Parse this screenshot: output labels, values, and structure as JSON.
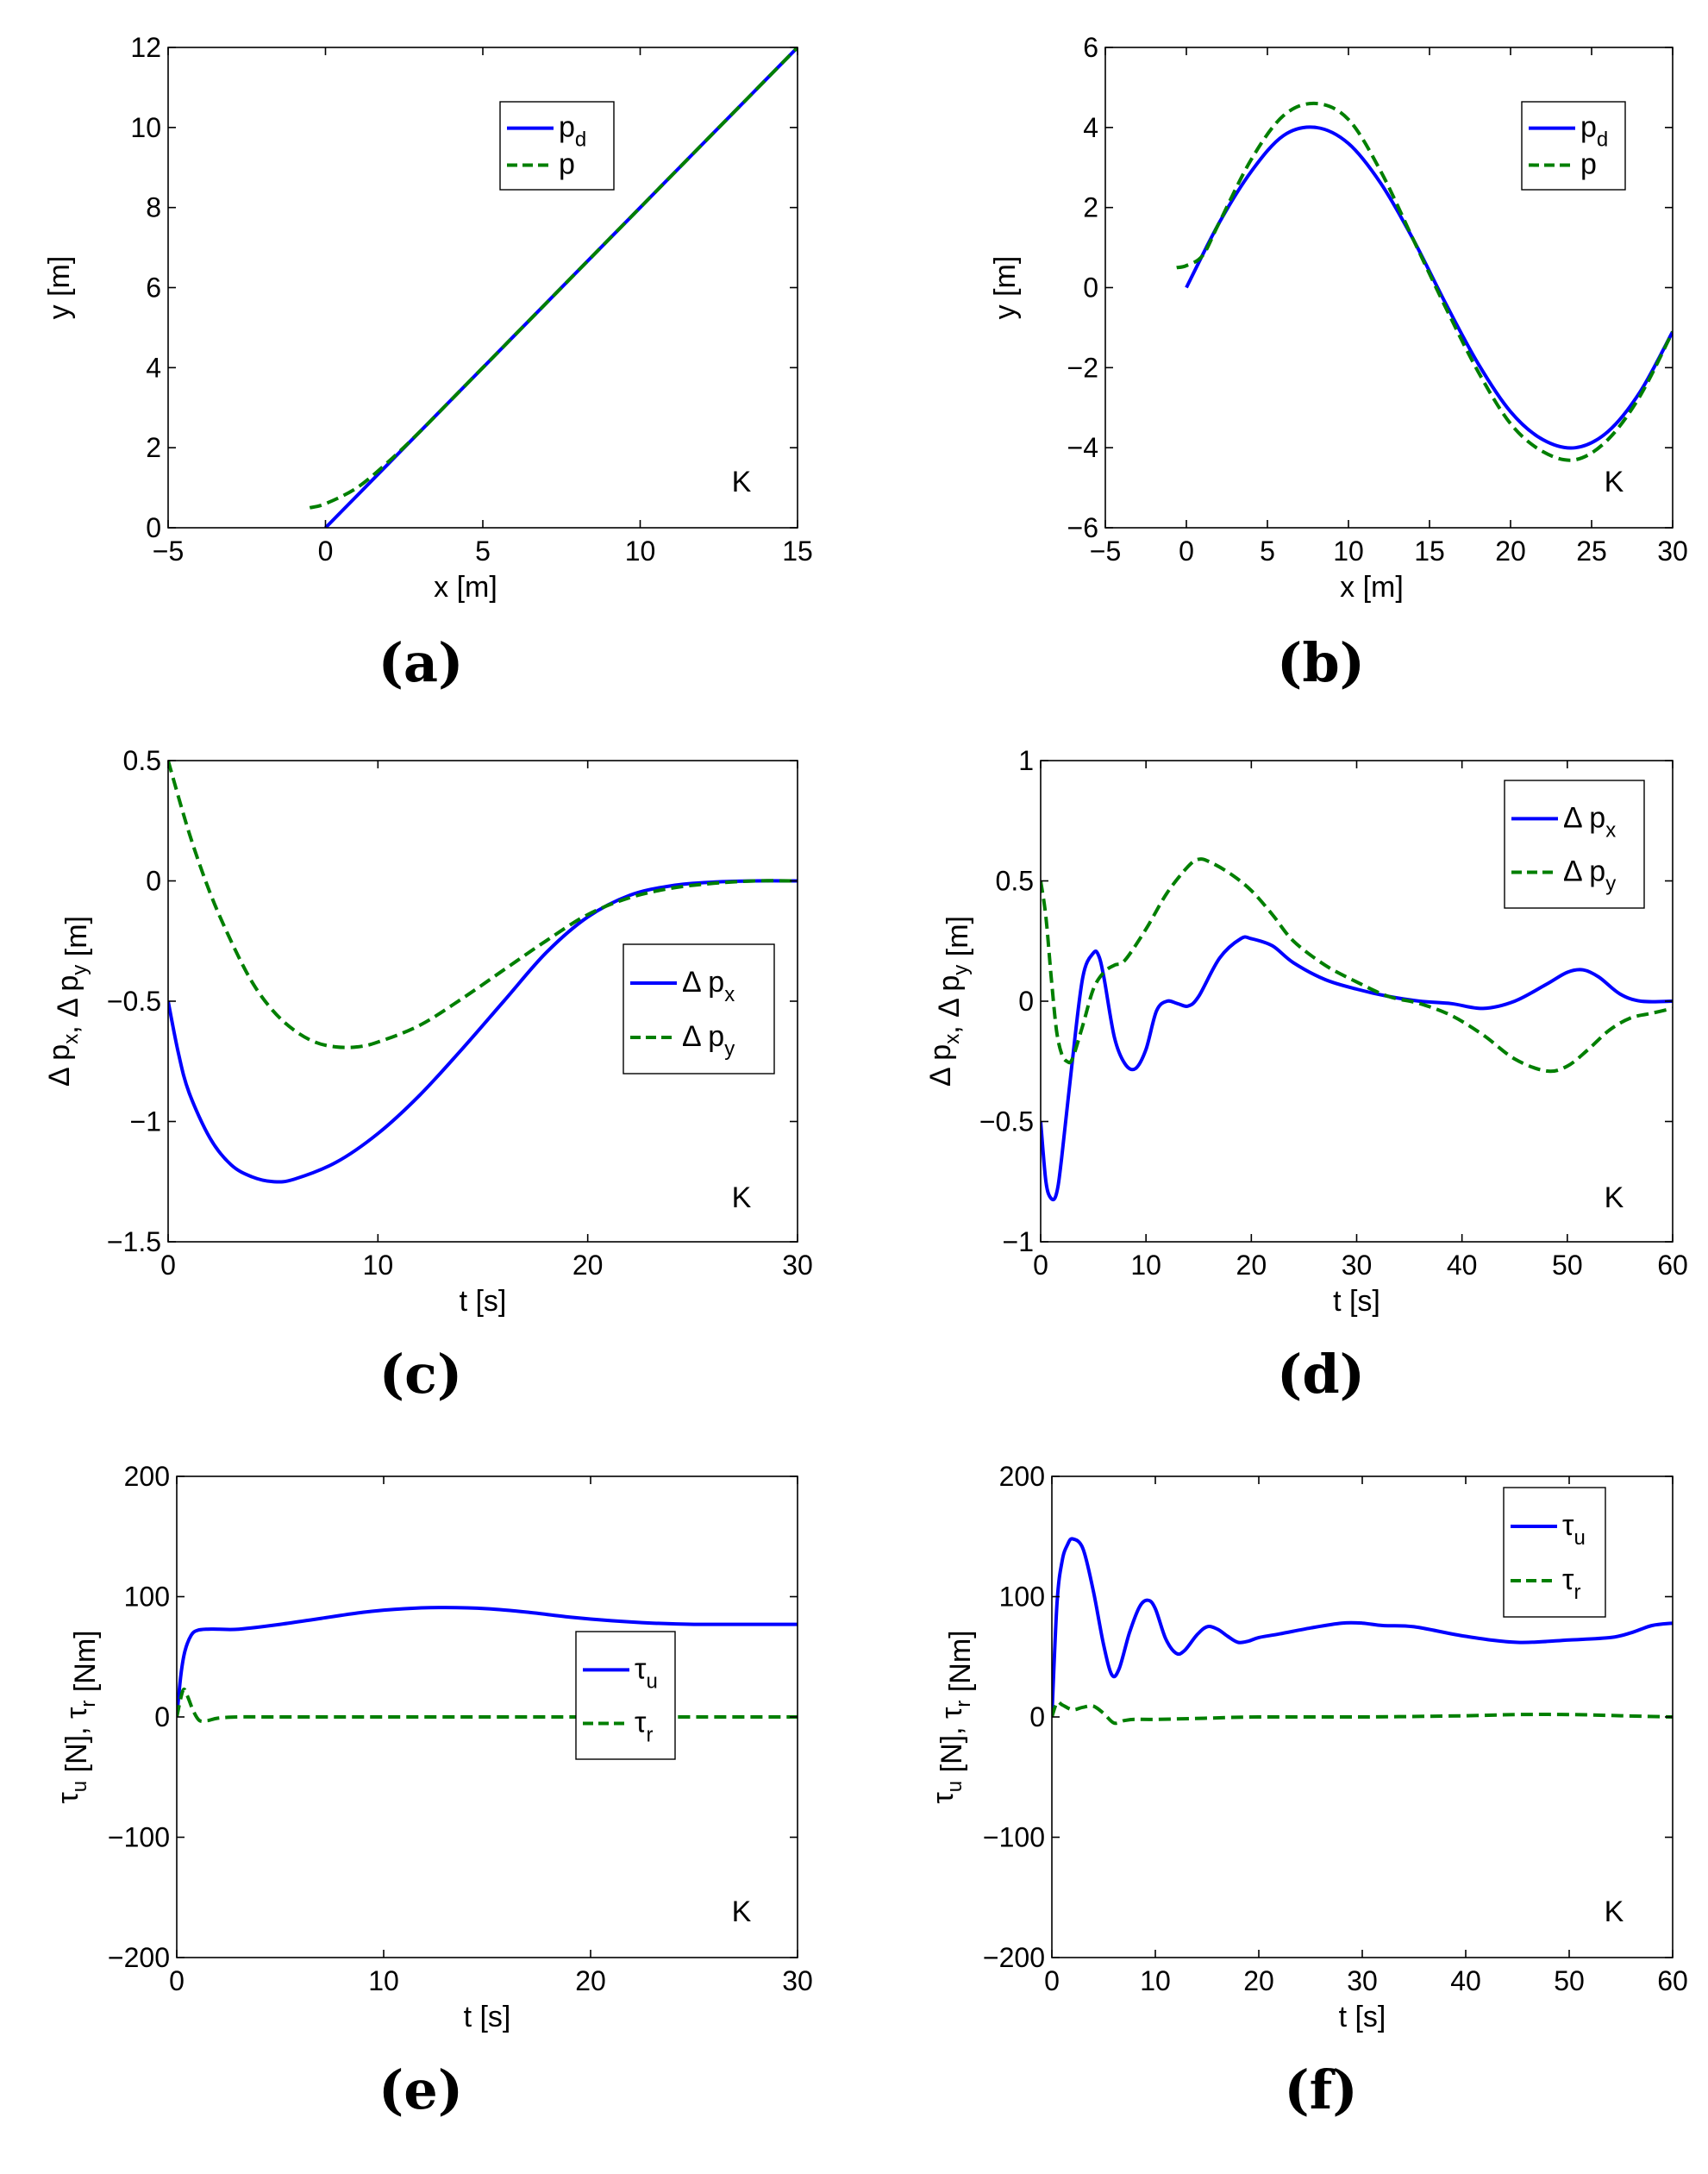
{
  "figure_labels": {
    "corner_mark": "K"
  },
  "colors": {
    "series_blue": "#0000ff",
    "series_green": "#007f00",
    "axis": "#000000"
  },
  "chart_data": [
    {
      "id": "a",
      "type": "line",
      "caption": "(a)",
      "xlabel": "x [m]",
      "ylabel": "y [m]",
      "xlim": [
        -5,
        15
      ],
      "ylim": [
        0,
        12
      ],
      "xticks": [
        -5,
        0,
        5,
        10,
        15
      ],
      "yticks": [
        0,
        2,
        4,
        6,
        8,
        10,
        12
      ],
      "xtick_labels": [
        "−5",
        "0",
        "5",
        "10",
        "15"
      ],
      "ytick_labels": [
        "0",
        "2",
        "4",
        "6",
        "8",
        "10",
        "12"
      ],
      "grid": false,
      "legend_position": "top-right",
      "legend_entries": [
        {
          "base": "p",
          "sub": "d",
          "style": "solid"
        },
        {
          "base": "p",
          "sub": "",
          "style": "dashed"
        }
      ],
      "annotation": "K",
      "series": [
        {
          "name": "p_d",
          "style": "solid",
          "x": [
            0,
            2,
            4,
            6,
            8,
            10,
            12,
            15
          ],
          "y": [
            0,
            1.6,
            3.2,
            4.8,
            6.4,
            8.0,
            9.6,
            12.0
          ]
        },
        {
          "name": "p",
          "style": "dashed",
          "x": [
            -0.5,
            0,
            1,
            2,
            3,
            4,
            5,
            6,
            8,
            10,
            12,
            15
          ],
          "y": [
            0.5,
            0.6,
            1.0,
            1.65,
            2.4,
            3.2,
            4.0,
            4.8,
            6.4,
            8.0,
            9.6,
            12.0
          ]
        }
      ]
    },
    {
      "id": "b",
      "type": "line",
      "caption": "(b)",
      "xlabel": "x [m]",
      "ylabel": "y [m]",
      "xlim": [
        -5,
        30
      ],
      "ylim": [
        -6,
        6
      ],
      "xticks": [
        -5,
        0,
        5,
        10,
        15,
        20,
        25,
        30
      ],
      "yticks": [
        -6,
        -4,
        -2,
        0,
        2,
        4,
        6
      ],
      "xtick_labels": [
        "−5",
        "0",
        "5",
        "10",
        "15",
        "20",
        "25",
        "30"
      ],
      "ytick_labels": [
        "−6",
        "−4",
        "−2",
        "0",
        "2",
        "4",
        "6"
      ],
      "grid": false,
      "legend_position": "top-right",
      "legend_entries": [
        {
          "base": "p",
          "sub": "d",
          "style": "solid"
        },
        {
          "base": "p",
          "sub": "",
          "style": "dashed"
        }
      ],
      "annotation": "K",
      "series": [
        {
          "name": "p_d",
          "style": "solid",
          "x": [
            0,
            2,
            4,
            6,
            8,
            10,
            12,
            14,
            16,
            18,
            20,
            22,
            24,
            26,
            28,
            30
          ],
          "y": [
            0,
            1.6,
            2.9,
            3.8,
            4.0,
            3.6,
            2.6,
            1.2,
            -0.4,
            -1.9,
            -3.1,
            -3.8,
            -4.0,
            -3.6,
            -2.6,
            -1.1
          ]
        },
        {
          "name": "p",
          "style": "dashed",
          "x": [
            -0.6,
            0,
            1,
            2,
            4,
            6,
            8,
            10,
            12,
            14,
            16,
            18,
            20,
            22,
            24,
            26,
            28,
            30
          ],
          "y": [
            0.5,
            0.55,
            0.8,
            1.6,
            3.2,
            4.3,
            4.6,
            4.2,
            2.9,
            1.2,
            -0.5,
            -2.1,
            -3.4,
            -4.1,
            -4.3,
            -3.8,
            -2.7,
            -1.1
          ]
        }
      ]
    },
    {
      "id": "c",
      "type": "line",
      "caption": "(c)",
      "xlabel": "t [s]",
      "ylabel": "Δ p_x, Δ p_y [m]",
      "xlim": [
        0,
        30
      ],
      "ylim": [
        -1.5,
        0.5
      ],
      "xticks": [
        0,
        10,
        20,
        30
      ],
      "yticks": [
        -1.5,
        -1,
        -0.5,
        0,
        0.5
      ],
      "xtick_labels": [
        "0",
        "10",
        "20",
        "30"
      ],
      "ytick_labels": [
        "−1.5",
        "−1",
        "−0.5",
        "0",
        "0.5"
      ],
      "grid": false,
      "legend_position": "middle-right",
      "legend_entries": [
        {
          "base": "Δ p",
          "sub": "x",
          "style": "solid"
        },
        {
          "base": "Δ p",
          "sub": "y",
          "style": "dashed"
        }
      ],
      "annotation": "K",
      "series": [
        {
          "name": "Δ p_x",
          "style": "solid",
          "x": [
            0,
            0.5,
            1,
            2,
            3,
            4,
            5,
            6,
            8,
            10,
            12,
            14,
            16,
            18,
            20,
            22,
            24,
            26,
            28,
            30
          ],
          "y": [
            -0.5,
            -0.72,
            -0.88,
            -1.07,
            -1.18,
            -1.23,
            -1.25,
            -1.24,
            -1.17,
            -1.05,
            -0.89,
            -0.7,
            -0.5,
            -0.3,
            -0.15,
            -0.06,
            -0.02,
            -0.005,
            0,
            0
          ]
        },
        {
          "name": "Δ p_y",
          "style": "dashed",
          "x": [
            0,
            1,
            2,
            3,
            4,
            5,
            6,
            7,
            8,
            9,
            10,
            12,
            14,
            16,
            18,
            20,
            22,
            24,
            26,
            28,
            30
          ],
          "y": [
            0.5,
            0.2,
            -0.05,
            -0.25,
            -0.42,
            -0.54,
            -0.62,
            -0.67,
            -0.69,
            -0.69,
            -0.67,
            -0.6,
            -0.49,
            -0.37,
            -0.25,
            -0.14,
            -0.07,
            -0.03,
            -0.01,
            0,
            0
          ]
        }
      ]
    },
    {
      "id": "d",
      "type": "line",
      "caption": "(d)",
      "xlabel": "t [s]",
      "ylabel": "Δ p_x, Δ p_y [m]",
      "xlim": [
        0,
        60
      ],
      "ylim": [
        -1,
        1
      ],
      "xticks": [
        0,
        10,
        20,
        30,
        40,
        50,
        60
      ],
      "yticks": [
        -1,
        -0.5,
        0,
        0.5,
        1
      ],
      "xtick_labels": [
        "0",
        "10",
        "20",
        "30",
        "40",
        "50",
        "60"
      ],
      "ytick_labels": [
        "−1",
        "−0.5",
        "0",
        "0.5",
        "1"
      ],
      "grid": false,
      "legend_position": "top-right",
      "legend_entries": [
        {
          "base": "Δ p",
          "sub": "x",
          "style": "solid"
        },
        {
          "base": "Δ p",
          "sub": "y",
          "style": "dashed"
        }
      ],
      "annotation": "K",
      "series": [
        {
          "name": "Δ p_x",
          "style": "solid",
          "x": [
            0,
            0.5,
            1,
            1.5,
            2,
            3,
            4,
            5,
            5.5,
            6,
            7,
            8,
            9,
            10,
            11,
            12,
            13,
            14,
            15,
            17,
            19,
            20,
            22,
            24,
            27,
            30,
            33,
            36,
            39,
            42,
            45,
            48,
            50,
            51.5,
            53,
            55,
            57,
            60
          ],
          "y": [
            -0.5,
            -0.75,
            -0.82,
            -0.8,
            -0.65,
            -0.25,
            0.1,
            0.2,
            0.19,
            0.1,
            -0.15,
            -0.26,
            -0.28,
            -0.2,
            -0.04,
            0.0,
            -0.01,
            -0.02,
            0.02,
            0.18,
            0.26,
            0.26,
            0.23,
            0.16,
            0.09,
            0.05,
            0.02,
            0.0,
            -0.01,
            -0.03,
            0.0,
            0.07,
            0.12,
            0.13,
            0.1,
            0.03,
            0.0,
            0.0
          ]
        },
        {
          "name": "Δ p_y",
          "style": "dashed",
          "x": [
            0,
            0.5,
            1,
            1.5,
            2,
            2.5,
            3,
            4,
            5,
            6,
            7,
            8,
            10,
            12,
            14,
            15,
            16,
            18,
            20,
            22,
            24,
            27,
            30,
            33,
            36,
            39,
            42,
            45,
            48,
            50,
            52,
            54,
            56,
            58,
            60
          ],
          "y": [
            0.5,
            0.35,
            0.1,
            -0.12,
            -0.22,
            -0.25,
            -0.24,
            -0.1,
            0.05,
            0.12,
            0.15,
            0.17,
            0.3,
            0.45,
            0.56,
            0.59,
            0.58,
            0.53,
            0.46,
            0.36,
            0.25,
            0.15,
            0.08,
            0.02,
            -0.01,
            -0.06,
            -0.14,
            -0.24,
            -0.29,
            -0.27,
            -0.2,
            -0.12,
            -0.07,
            -0.05,
            -0.03
          ]
        }
      ]
    },
    {
      "id": "e",
      "type": "line",
      "caption": "(e)",
      "xlabel": "t [s]",
      "ylabel": "τ_u [N], τ_r [Nm]",
      "xlim": [
        0,
        30
      ],
      "ylim": [
        -200,
        200
      ],
      "xticks": [
        0,
        10,
        20,
        30
      ],
      "yticks": [
        -200,
        -100,
        0,
        100,
        200
      ],
      "xtick_labels": [
        "0",
        "10",
        "20",
        "30"
      ],
      "ytick_labels": [
        "−200",
        "−100",
        "0",
        "100",
        "200"
      ],
      "grid": false,
      "legend_position": "bottom-center",
      "legend_entries": [
        {
          "base": "τ",
          "sub": "u",
          "style": "solid"
        },
        {
          "base": "τ",
          "sub": "r",
          "style": "dashed"
        }
      ],
      "annotation": "K",
      "series": [
        {
          "name": "τ_u",
          "style": "solid",
          "x": [
            0,
            0.2,
            0.4,
            0.7,
            1,
            1.5,
            2,
            3,
            5,
            7,
            9,
            11,
            13,
            15,
            17,
            19,
            21,
            23,
            25,
            27,
            30
          ],
          "y": [
            0,
            35,
            55,
            68,
            72,
            73,
            73,
            73,
            77,
            82,
            87,
            90,
            91,
            90,
            87,
            83,
            80,
            78,
            77,
            77,
            77
          ]
        },
        {
          "name": "τ_r",
          "style": "dashed",
          "x": [
            0,
            0.3,
            0.5,
            0.8,
            1.1,
            1.5,
            2,
            3,
            5,
            10,
            20,
            30
          ],
          "y": [
            0,
            22,
            18,
            5,
            -3,
            -3,
            -1,
            0,
            0,
            0,
            0,
            0
          ]
        }
      ]
    },
    {
      "id": "f",
      "type": "line",
      "caption": "(f)",
      "xlabel": "t [s]",
      "ylabel": "τ_u [N], τ_r [Nm]",
      "xlim": [
        0,
        60
      ],
      "ylim": [
        -200,
        200
      ],
      "xticks": [
        0,
        10,
        20,
        30,
        40,
        50,
        60
      ],
      "yticks": [
        -200,
        -100,
        0,
        100,
        200
      ],
      "xtick_labels": [
        "0",
        "10",
        "20",
        "30",
        "40",
        "50",
        "60"
      ],
      "ytick_labels": [
        "−200",
        "−100",
        "0",
        "100",
        "200"
      ],
      "grid": false,
      "legend_position": "top-right",
      "legend_entries": [
        {
          "base": "τ",
          "sub": "u",
          "style": "solid"
        },
        {
          "base": "τ",
          "sub": "r",
          "style": "dashed"
        }
      ],
      "annotation": "K",
      "series": [
        {
          "name": "τ_u",
          "style": "solid",
          "x": [
            0,
            0.5,
            1,
            1.5,
            2,
            3,
            4,
            5,
            5.8,
            6.5,
            7.5,
            8.5,
            9.3,
            10,
            11,
            12,
            12.8,
            14,
            15,
            16,
            17,
            18,
            19,
            20,
            22,
            25,
            28,
            30,
            32,
            35,
            40,
            45,
            50,
            54,
            56,
            58,
            60
          ],
          "y": [
            0,
            95,
            130,
            143,
            148,
            140,
            105,
            60,
            35,
            40,
            70,
            92,
            97,
            90,
            65,
            53,
            55,
            68,
            75,
            73,
            67,
            62,
            63,
            66,
            69,
            74,
            78,
            78,
            76,
            75,
            67,
            62,
            64,
            66,
            70,
            76,
            78
          ]
        },
        {
          "name": "τ_r",
          "style": "dashed",
          "x": [
            0,
            0.5,
            1,
            2,
            3,
            4,
            5,
            6,
            7,
            8,
            10,
            15,
            20,
            30,
            40,
            45,
            50,
            55,
            60
          ],
          "y": [
            0,
            12,
            10,
            6,
            8,
            9,
            3,
            -5,
            -3,
            -2,
            -2,
            -1,
            0,
            0,
            1,
            2,
            2,
            1,
            0
          ]
        }
      ]
    }
  ]
}
